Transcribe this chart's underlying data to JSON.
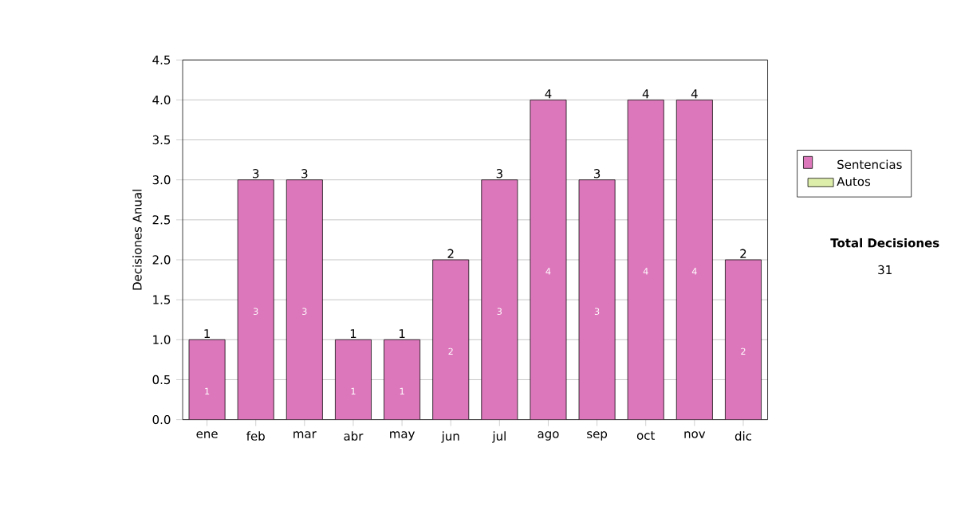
{
  "chart_data": {
    "type": "bar",
    "ylabel": "Decisiones Anual",
    "categories": [
      "ene",
      "feb",
      "mar",
      "abr",
      "may",
      "jun",
      "jul",
      "ago",
      "sep",
      "oct",
      "nov",
      "dic"
    ],
    "series": [
      {
        "name": "Sentencias",
        "color": "#dd77bb",
        "values": [
          1,
          3,
          3,
          1,
          1,
          2,
          3,
          4,
          3,
          4,
          4,
          2
        ]
      },
      {
        "name": "Autos",
        "color": "#ddeeaa",
        "values": [
          null,
          null,
          null,
          null,
          null,
          null,
          null,
          null,
          null,
          null,
          null,
          null
        ]
      }
    ],
    "stacked": true,
    "data_labels": true,
    "totals": [
      "1",
      "3",
      "3",
      "1",
      "1",
      "2",
      "3",
      "4",
      "3",
      "4",
      "4",
      "2"
    ],
    "ylim": [
      0,
      4.5
    ],
    "yticks": [
      {
        "value": 0,
        "label": "0.0"
      },
      {
        "value": 0.5,
        "label": "0.5"
      },
      {
        "value": 1,
        "label": "1.0"
      },
      {
        "value": 1.5,
        "label": "1.5"
      },
      {
        "value": 2,
        "label": "2.0"
      },
      {
        "value": 2.5,
        "label": "2.5"
      },
      {
        "value": 3,
        "label": "3.0"
      },
      {
        "value": 3.5,
        "label": "3.5"
      },
      {
        "value": 4,
        "label": "4.0"
      },
      {
        "value": 4.5,
        "label": "4.5"
      }
    ],
    "grid": "y",
    "legend": "right",
    "annotations": [
      "Total Decisiones",
      "31"
    ]
  }
}
